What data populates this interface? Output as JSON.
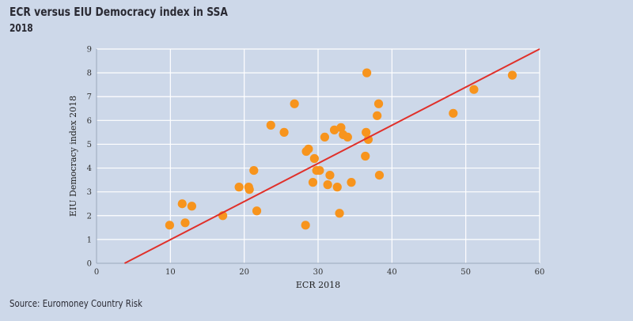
{
  "chart_data": {
    "type": "scatter",
    "title": "ECR versus EIU Democracy index in SSA",
    "subtitle": "2018",
    "xlabel": "ECR 2018",
    "ylabel": "EIU Democracy index 2018",
    "xlim": [
      0,
      60
    ],
    "ylim": [
      0,
      9
    ],
    "xticks": [
      "0",
      "10",
      "20",
      "30",
      "40",
      "50",
      "60"
    ],
    "yticks": [
      "0",
      "1",
      "2",
      "3",
      "4",
      "5",
      "6",
      "7",
      "8",
      "9"
    ],
    "grid": true,
    "point_color": "#f7941d",
    "trend_color": "#e0302a",
    "trendline": {
      "x": [
        3.8,
        60
      ],
      "y": [
        0,
        9
      ]
    },
    "points": [
      {
        "x": 9.9,
        "y": 1.6
      },
      {
        "x": 11.6,
        "y": 2.5
      },
      {
        "x": 12.0,
        "y": 1.7
      },
      {
        "x": 12.9,
        "y": 2.4
      },
      {
        "x": 17.1,
        "y": 2.0
      },
      {
        "x": 19.3,
        "y": 3.2
      },
      {
        "x": 20.6,
        "y": 3.2
      },
      {
        "x": 20.7,
        "y": 3.1
      },
      {
        "x": 21.3,
        "y": 3.9
      },
      {
        "x": 21.7,
        "y": 2.2
      },
      {
        "x": 23.6,
        "y": 5.8
      },
      {
        "x": 25.4,
        "y": 5.5
      },
      {
        "x": 26.8,
        "y": 6.7
      },
      {
        "x": 28.3,
        "y": 1.6
      },
      {
        "x": 28.4,
        "y": 4.7
      },
      {
        "x": 28.7,
        "y": 4.8
      },
      {
        "x": 29.3,
        "y": 3.4
      },
      {
        "x": 29.5,
        "y": 4.4
      },
      {
        "x": 29.8,
        "y": 3.9
      },
      {
        "x": 30.2,
        "y": 3.9
      },
      {
        "x": 30.9,
        "y": 5.3
      },
      {
        "x": 31.3,
        "y": 3.3
      },
      {
        "x": 31.6,
        "y": 3.7
      },
      {
        "x": 32.2,
        "y": 5.6
      },
      {
        "x": 32.6,
        "y": 3.2
      },
      {
        "x": 32.9,
        "y": 2.1
      },
      {
        "x": 33.1,
        "y": 5.7
      },
      {
        "x": 33.4,
        "y": 5.4
      },
      {
        "x": 34.0,
        "y": 5.3
      },
      {
        "x": 34.5,
        "y": 3.4
      },
      {
        "x": 36.4,
        "y": 4.5
      },
      {
        "x": 36.5,
        "y": 5.5
      },
      {
        "x": 36.6,
        "y": 8.0
      },
      {
        "x": 36.8,
        "y": 5.2
      },
      {
        "x": 38.0,
        "y": 6.2
      },
      {
        "x": 38.2,
        "y": 6.7
      },
      {
        "x": 38.3,
        "y": 3.7
      },
      {
        "x": 48.3,
        "y": 6.3
      },
      {
        "x": 51.1,
        "y": 7.3
      },
      {
        "x": 56.3,
        "y": 7.9
      }
    ]
  },
  "source": "Source: Euromoney Country Risk"
}
